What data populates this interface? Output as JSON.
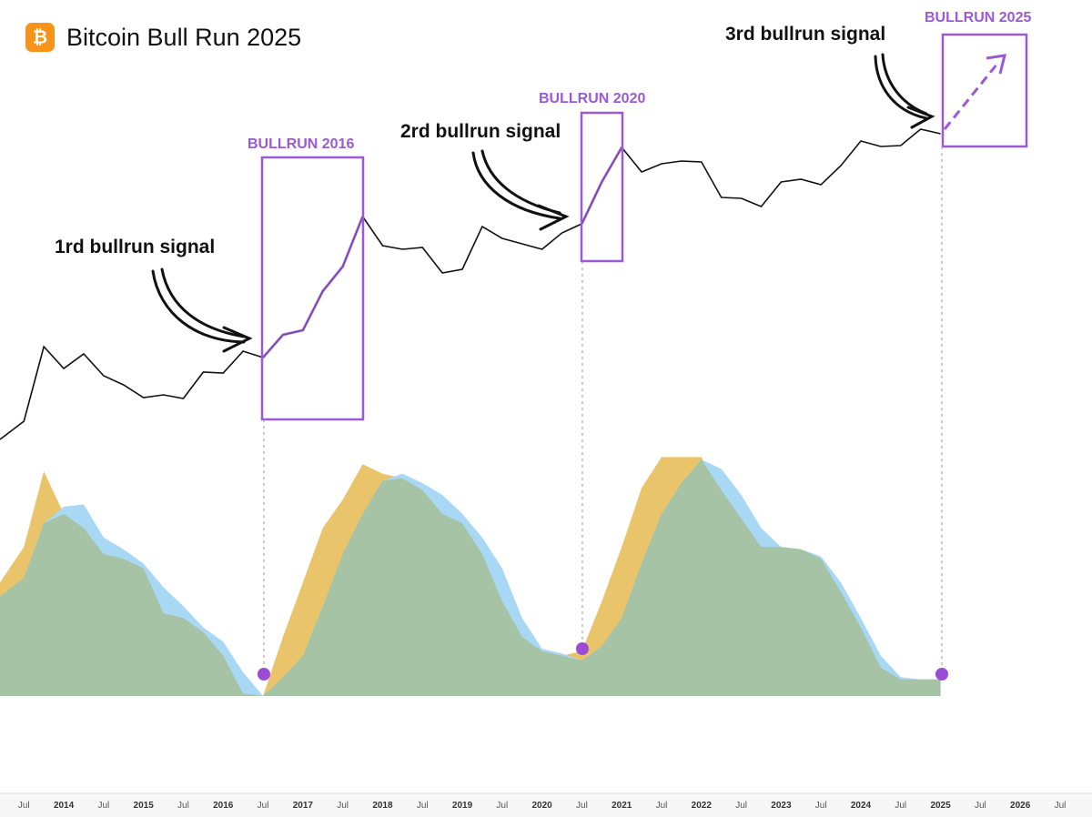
{
  "logo_symbol": "₿",
  "chart_data": [
    {
      "type": "line",
      "title": "Bitcoin Bull Run 2025",
      "x": [
        2013.2,
        2013.5,
        2013.75,
        2014,
        2014.25,
        2014.5,
        2014.75,
        2015,
        2015.25,
        2015.5,
        2015.75,
        2016,
        2016.25,
        2016.5,
        2016.75,
        2017,
        2017.25,
        2017.5,
        2017.75,
        2018,
        2018.25,
        2018.5,
        2018.75,
        2019,
        2019.25,
        2019.5,
        2019.75,
        2020,
        2020.25,
        2020.5,
        2020.75,
        2021,
        2021.25,
        2021.5,
        2021.75,
        2022,
        2022.25,
        2022.5,
        2022.75,
        2023,
        2023.25,
        2023.5,
        2023.75,
        2024,
        2024.25,
        2024.5,
        2024.75,
        2025
      ],
      "values": [
        4.25,
        9.25,
        29.75,
        23.75,
        27.75,
        21.75,
        19.25,
        15.75,
        16.5,
        15.5,
        22.75,
        22.5,
        28.5,
        26.75,
        33,
        34.25,
        45,
        51.75,
        65.5,
        57.5,
        56.5,
        57,
        50,
        51,
        62.75,
        59.5,
        58,
        56.5,
        61,
        63.5,
        75,
        84.5,
        77.75,
        80,
        80.75,
        80.5,
        70.75,
        70.5,
        68.25,
        75,
        75.75,
        74.25,
        79.5,
        86.25,
        84.75,
        85,
        89.5,
        88.25
      ],
      "color": "#111111",
      "highlight_color": "#9b59d6",
      "xlim": [
        2013.2,
        2026.9
      ],
      "ylim": [
        0,
        100
      ],
      "annotations": [
        "1rd bullrun signal",
        "2rd bullrun signal",
        "3rd bullrun signal",
        "BULLRUN 2016",
        "BULLRUN 2020",
        "BULLRUN 2025"
      ]
    },
    {
      "type": "area",
      "x": [
        2013.2,
        2013.5,
        2013.75,
        2014,
        2014.25,
        2014.5,
        2014.75,
        2015,
        2015.25,
        2015.5,
        2015.75,
        2016,
        2016.25,
        2016.5,
        2016.75,
        2017,
        2017.25,
        2017.5,
        2017.75,
        2018,
        2018.25,
        2018.5,
        2018.75,
        2019,
        2019.25,
        2019.5,
        2019.75,
        2020,
        2020.25,
        2020.5,
        2020.75,
        2021,
        2021.25,
        2021.5,
        2021.75,
        2022,
        2022.25,
        2022.5,
        2022.75,
        2023,
        2023.25,
        2023.5,
        2023.75,
        2024,
        2024.25,
        2024.5,
        2024.75,
        2025
      ],
      "series": [
        {
          "color": "#e9c46a",
          "values": [
            48,
            63,
            95,
            77,
            71,
            60,
            58,
            54,
            35,
            33,
            27,
            17,
            1,
            0,
            25,
            48,
            71,
            83,
            98,
            94,
            92,
            87,
            77,
            73,
            60,
            40,
            25,
            19,
            17,
            19,
            40,
            63,
            88,
            101,
            101,
            101,
            87,
            75,
            63,
            63,
            62,
            58,
            44,
            29,
            12,
            7,
            7,
            7
          ]
        },
        {
          "color": "#a9d8f5",
          "values": [
            42,
            50,
            73,
            80,
            81,
            67,
            62,
            56,
            46,
            38,
            29,
            23,
            10,
            0,
            8,
            17,
            38,
            60,
            77,
            91,
            94,
            90,
            85,
            77,
            67,
            54,
            33,
            20,
            18,
            15,
            21,
            33,
            56,
            77,
            90,
            100,
            96,
            85,
            71,
            63,
            62,
            59,
            48,
            33,
            17,
            8,
            7,
            7
          ]
        }
      ],
      "overlap_color": "#a6c3a6",
      "xlim": [
        2013.2,
        2026.9
      ],
      "ylim": [
        0,
        105
      ],
      "xticks": [
        {
          "value": 2013.5,
          "label": "Jul"
        },
        2014,
        {
          "value": 2014.5,
          "label": "Jul"
        },
        2015,
        {
          "value": 2015.5,
          "label": "Jul"
        },
        2016,
        {
          "value": 2016.5,
          "label": "Jul"
        },
        2017,
        {
          "value": 2017.5,
          "label": "Jul"
        },
        2018,
        {
          "value": 2018.5,
          "label": "Jul"
        },
        2019,
        {
          "value": 2019.5,
          "label": "Jul"
        },
        2020,
        {
          "value": 2020.5,
          "label": "Jul"
        },
        2021,
        {
          "value": 2021.5,
          "label": "Jul"
        },
        2022,
        {
          "value": 2022.5,
          "label": "Jul"
        },
        2023,
        {
          "value": 2023.5,
          "label": "Jul"
        },
        2024,
        {
          "value": 2024.5,
          "label": "Jul"
        },
        2025,
        {
          "value": 2025.5,
          "label": "Jul"
        },
        2026,
        {
          "value": 2026.5,
          "label": "Jul"
        }
      ]
    }
  ]
}
